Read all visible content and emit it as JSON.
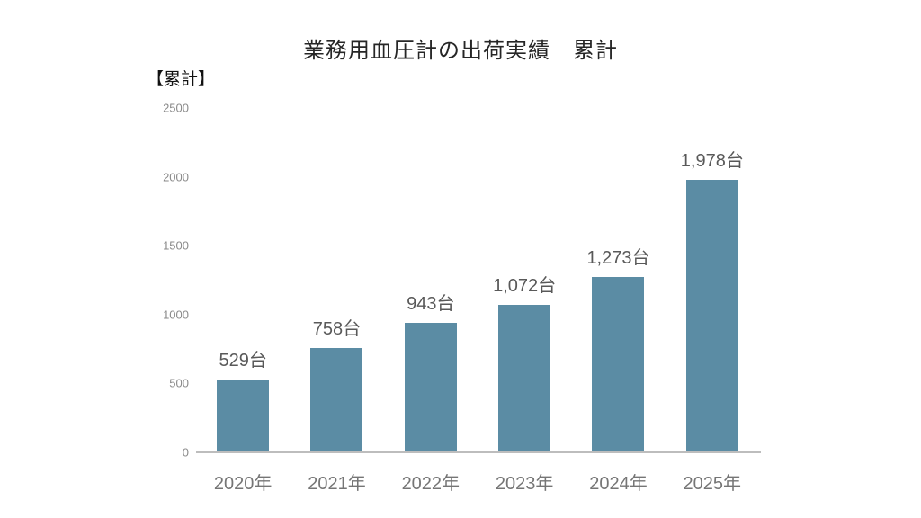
{
  "chart_data": {
    "type": "bar",
    "title": "業務用血圧計の出荷実績　累計",
    "unit_label": "【累計】",
    "categories": [
      "2020年",
      "2021年",
      "2022年",
      "2023年",
      "2024年",
      "2025年"
    ],
    "values": [
      529,
      758,
      943,
      1072,
      1273,
      1978
    ],
    "value_labels": [
      "529台",
      "758台",
      "943台",
      "1,072台",
      "1,273台",
      "1,978台"
    ],
    "ylim": [
      0,
      2500
    ],
    "yticks": [
      0,
      500,
      1000,
      1500,
      2000,
      2500
    ],
    "xlabel": "",
    "ylabel": "",
    "grid": false,
    "legend": "none",
    "bar_color": "#5b8ca4",
    "value_label_color": "#595959",
    "axis_label_color": "#757575",
    "tick_label_color": "#8a8a8a"
  }
}
